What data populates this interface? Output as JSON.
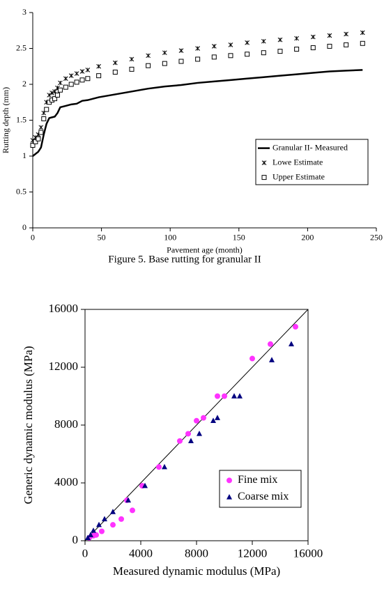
{
  "chart_data": [
    {
      "type": "line",
      "x_label": "Pavement age (month)",
      "y_label": "Rutting depth (mm)",
      "x": [
        0,
        2,
        4,
        6,
        8,
        10,
        12,
        14,
        16,
        18,
        20,
        24,
        28,
        32,
        36,
        40,
        48,
        60,
        72,
        84,
        96,
        108,
        120,
        132,
        144,
        156,
        168,
        180,
        192,
        204,
        216,
        228,
        240
      ],
      "series": [
        {
          "name": "Granular II- Measured",
          "color": "#000000",
          "linestyle": "solid",
          "marker": "none",
          "values": [
            1.0,
            1.03,
            1.06,
            1.12,
            1.3,
            1.45,
            1.53,
            1.54,
            1.55,
            1.6,
            1.68,
            1.7,
            1.72,
            1.73,
            1.77,
            1.78,
            1.82,
            1.86,
            1.9,
            1.94,
            1.97,
            1.99,
            2.02,
            2.04,
            2.06,
            2.08,
            2.1,
            2.12,
            2.14,
            2.16,
            2.18,
            2.19,
            2.2
          ]
        },
        {
          "name": "Lowe Estimate",
          "color": "#000000",
          "linestyle": "none",
          "marker": "x",
          "values": [
            1.22,
            1.26,
            1.3,
            1.4,
            1.6,
            1.75,
            1.85,
            1.88,
            1.9,
            1.95,
            2.02,
            2.08,
            2.12,
            2.15,
            2.18,
            2.2,
            2.25,
            2.3,
            2.35,
            2.4,
            2.44,
            2.47,
            2.5,
            2.53,
            2.55,
            2.58,
            2.6,
            2.62,
            2.64,
            2.66,
            2.68,
            2.7,
            2.72
          ]
        },
        {
          "name": "Upper Estimate",
          "color": "#000000",
          "linestyle": "none",
          "marker": "square",
          "values": [
            1.15,
            1.2,
            1.24,
            1.33,
            1.52,
            1.65,
            1.75,
            1.78,
            1.8,
            1.85,
            1.92,
            1.96,
            2.0,
            2.03,
            2.06,
            2.08,
            2.12,
            2.17,
            2.21,
            2.26,
            2.29,
            2.32,
            2.35,
            2.38,
            2.4,
            2.42,
            2.44,
            2.46,
            2.49,
            2.51,
            2.53,
            2.55,
            2.57
          ]
        }
      ],
      "xlim": [
        0,
        250
      ],
      "xticks": [
        0,
        50,
        100,
        150,
        200,
        250
      ],
      "ylim": [
        0,
        3
      ],
      "yticks": [
        0,
        0.5,
        1,
        1.5,
        2,
        2.5,
        3
      ],
      "grid": false,
      "legend": "lower right",
      "frame": false
    },
    {
      "type": "scatter",
      "x_label": "Measured dynamic modulus (MPa)",
      "y_label": "Generic dynamic modulus (MPa)",
      "series": [
        {
          "name": "Fine mix",
          "color": "#ff33ff",
          "marker": "circle",
          "x": [
            300,
            600,
            800,
            1200,
            2000,
            2600,
            3400,
            3000,
            4100,
            5300,
            6800,
            7400,
            8000,
            8500,
            9500,
            10000,
            12000,
            13300,
            15100
          ],
          "values": [
            200,
            350,
            400,
            650,
            1100,
            1500,
            2100,
            2800,
            3800,
            5100,
            6900,
            7400,
            8300,
            8500,
            10000,
            10000,
            12600,
            13600,
            14800
          ]
        },
        {
          "name": "Coarse mix",
          "color": "#000080",
          "marker": "triangle",
          "x": [
            200,
            400,
            600,
            1000,
            1400,
            2000,
            3100,
            4300,
            5700,
            7600,
            8200,
            9200,
            9500,
            10700,
            11100,
            13400,
            14800
          ],
          "values": [
            200,
            400,
            700,
            1100,
            1500,
            2000,
            2800,
            3800,
            5100,
            6900,
            7400,
            8300,
            8500,
            10000,
            10000,
            12500,
            13600
          ]
        }
      ],
      "xlim": [
        0,
        16000
      ],
      "xticks": [
        0,
        4000,
        8000,
        12000,
        16000
      ],
      "ylim": [
        0,
        16000
      ],
      "yticks": [
        0,
        4000,
        8000,
        12000,
        16000
      ],
      "grid": false,
      "legend": "lower right",
      "frame": true,
      "equality_line": true
    }
  ],
  "caption": "Figure 5. Base rutting for granular II"
}
